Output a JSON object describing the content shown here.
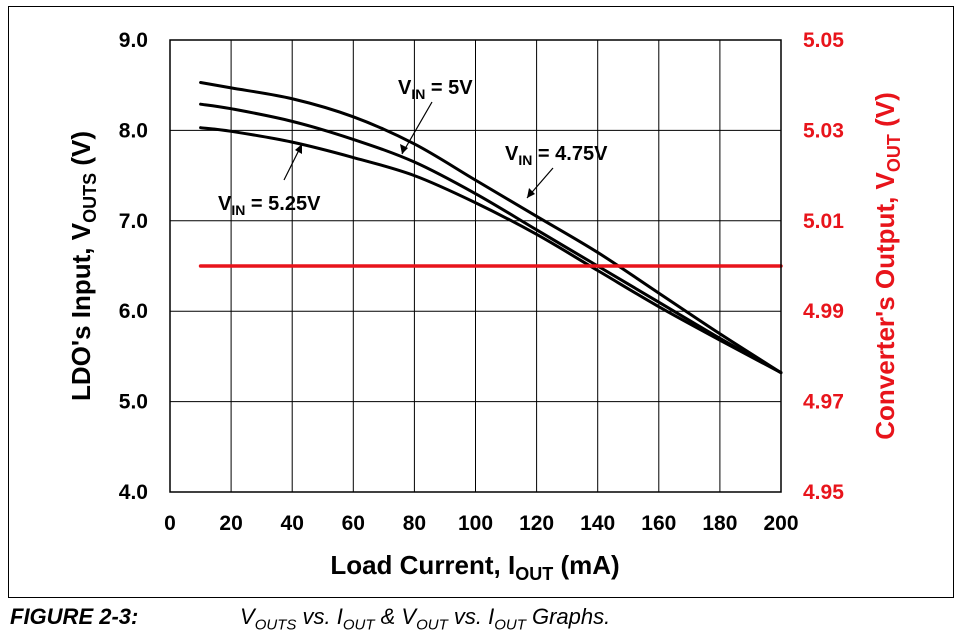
{
  "chart_data": {
    "type": "line",
    "x": [
      10,
      20,
      40,
      60,
      80,
      100,
      120,
      140,
      160,
      180,
      200
    ],
    "xlim": [
      0,
      200
    ],
    "xticks": [
      "0",
      "20",
      "40",
      "60",
      "80",
      "100",
      "120",
      "140",
      "160",
      "180",
      "200"
    ],
    "ylim": [
      4.0,
      9.0
    ],
    "yticks": [
      "4.0",
      "5.0",
      "6.0",
      "7.0",
      "8.0",
      "9.0"
    ],
    "y2lim": [
      4.95,
      5.05
    ],
    "y2ticks": [
      "4.95",
      "4.97",
      "4.99",
      "5.01",
      "5.03",
      "5.05"
    ],
    "xlabel": {
      "main": "Load Current, I",
      "sub": "OUT",
      "tail": " (mA)"
    },
    "ylabel": {
      "main": "LDO's Input, V",
      "sub": "OUTS",
      "tail": " (V)"
    },
    "y2label": {
      "main": "Converter's Output, V",
      "sub": "OUT",
      "tail": " (V)"
    },
    "grid": true,
    "series": [
      {
        "name": "VIN = 4.75V",
        "axis": "left",
        "color": "#000000",
        "values": [
          8.53,
          8.47,
          8.35,
          8.15,
          7.85,
          7.45,
          7.05,
          6.65,
          6.2,
          5.75,
          5.32
        ]
      },
      {
        "name": "VIN = 5V",
        "axis": "left",
        "color": "#000000",
        "values": [
          8.29,
          8.24,
          8.1,
          7.9,
          7.65,
          7.3,
          6.9,
          6.5,
          6.1,
          5.7,
          5.32
        ]
      },
      {
        "name": "VIN = 5.25V",
        "axis": "left",
        "color": "#000000",
        "values": [
          8.03,
          7.99,
          7.87,
          7.7,
          7.5,
          7.2,
          6.85,
          6.45,
          6.05,
          5.68,
          5.32
        ]
      },
      {
        "name": "VOUT",
        "axis": "right",
        "color": "#e8141b",
        "values": [
          5.0,
          5.0,
          5.0,
          5.0,
          5.0,
          5.0,
          5.0,
          5.0,
          5.0,
          5.0,
          5.0
        ]
      }
    ],
    "annotations": [
      {
        "main": "V",
        "sub": "IN",
        "tail": " = 5V"
      },
      {
        "main": "V",
        "sub": "IN",
        "tail": " = 4.75V"
      },
      {
        "main": "V",
        "sub": "IN",
        "tail": " = 5.25V"
      }
    ]
  },
  "caption": {
    "label": "FIGURE 2-3:",
    "parts": [
      {
        "text": "V",
        "sub": "OUTS"
      },
      {
        "text": " vs. I",
        "sub": "OUT"
      },
      {
        "text": " & V",
        "sub": "OUT"
      },
      {
        "text": " vs. I",
        "sub": "OUT"
      },
      {
        "text": " Graphs.",
        "sub": ""
      }
    ]
  }
}
